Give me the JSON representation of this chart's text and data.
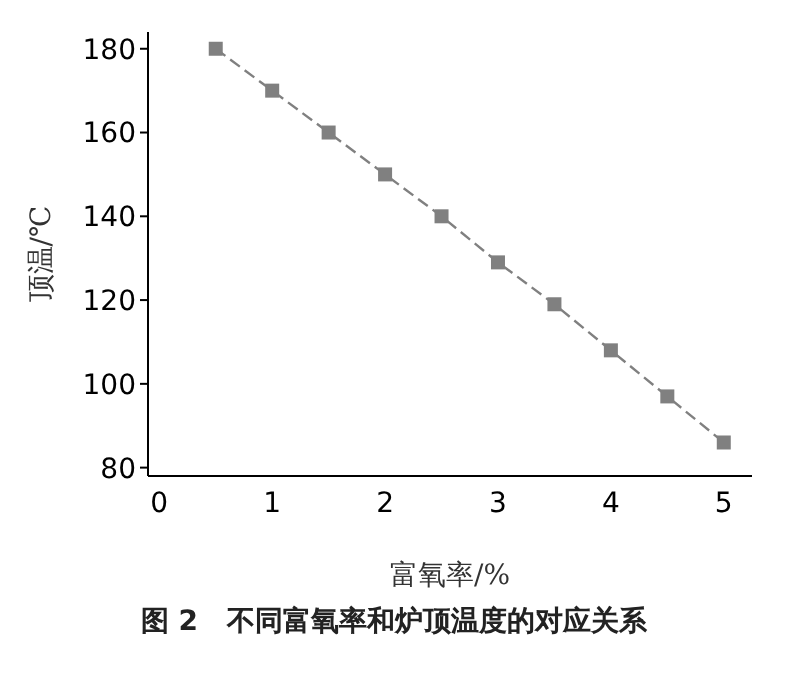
{
  "chart_data": {
    "type": "line",
    "title": "图 2   不同富氧率和炉顶温度的对应关系",
    "xlabel": "富氧率/%",
    "ylabel": "顶温/℃",
    "x": [
      0.5,
      1,
      1.5,
      2,
      2.5,
      3,
      3.5,
      4,
      4.5,
      5
    ],
    "series": [
      {
        "color": "#808080",
        "values": [
          180,
          170,
          160,
          150,
          140,
          129,
          119,
          108,
          97,
          86
        ]
      }
    ],
    "xlim": [
      -0.1,
      5.25
    ],
    "xticks": [
      0,
      1,
      2,
      3,
      4,
      5
    ],
    "ylim": [
      78,
      184
    ],
    "yticks": [
      80,
      100,
      120,
      140,
      160,
      180
    ],
    "grid": false,
    "legend": false,
    "marker": "square",
    "line_style": "dashed"
  }
}
